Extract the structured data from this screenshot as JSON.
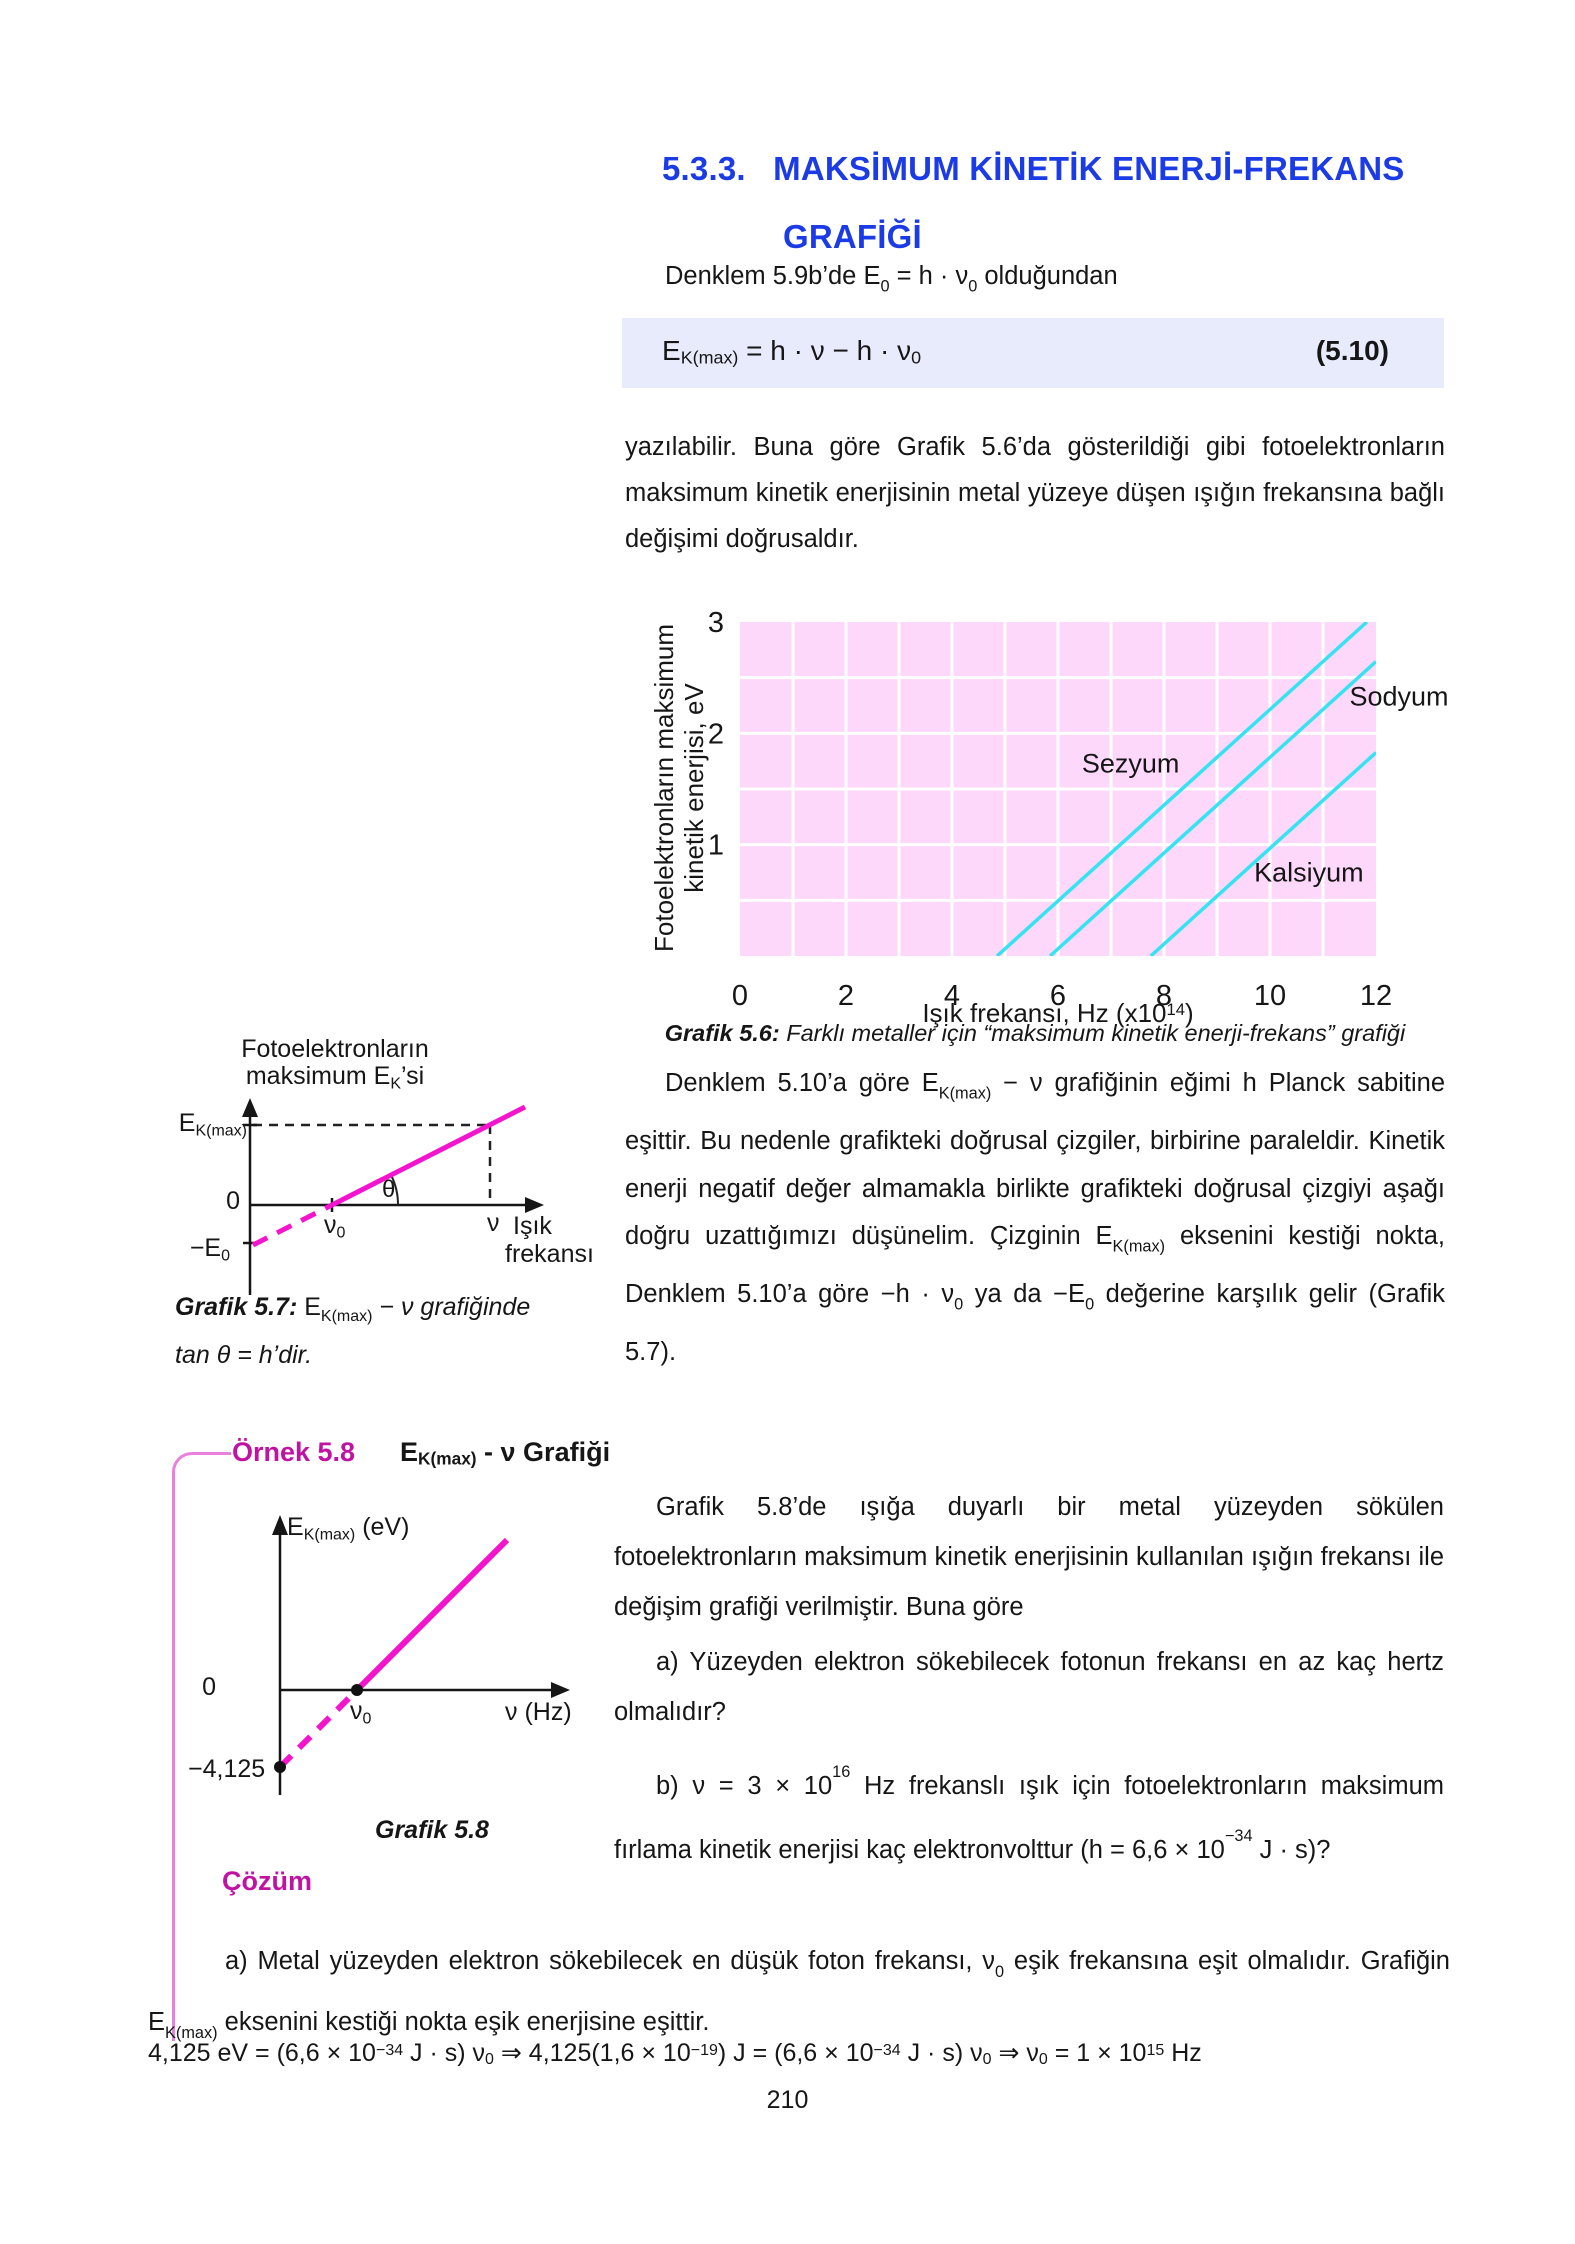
{
  "page": {
    "number": "210"
  },
  "heading": {
    "number": "5.3.3.",
    "line1": "MAKSİMUM KİNETİK ENERJİ-FREKANS",
    "line2": "GRAFİĞİ"
  },
  "intro": {
    "segments": [
      {
        "t": "Denklem 5.9b’de E"
      },
      {
        "t": "0",
        "c": "sb"
      },
      {
        "t": " = h · ν"
      },
      {
        "t": "0",
        "c": "sb"
      },
      {
        "t": " olduğundan"
      }
    ]
  },
  "equation": {
    "segments": [
      {
        "t": "E"
      },
      {
        "t": "K(max)",
        "c": "sb"
      },
      {
        "t": " = h · ν − h · ν"
      },
      {
        "t": "0",
        "c": "sb"
      }
    ],
    "tag": "(5.10)"
  },
  "para1": {
    "text": "yazılabilir. Buna göre Grafik 5.6’da gösterildiği gibi fotoelektronların maksimum kinetik enerjisinin metal yüzeye düşen ışığın frekansına bağlı değişimi doğrusaldır."
  },
  "chart_data": [
    {
      "id": "grafik-5-6",
      "type": "line",
      "title": "Grafik 5.6: Farklı metaller için maksimum kinetik enerji-frekans grafiği",
      "xlabel": "Işık frekansı, Hz (x10^14)",
      "ylabel": "Fotoelektronların maksimum kinetik enerjisi, eV",
      "xlabel_segments": [
        {
          "t": "Işık frekansı, Hz (x10"
        },
        {
          "t": "14",
          "c": "sp"
        },
        {
          "t": ")"
        }
      ],
      "ylabel_lines": [
        "Fotoelektronların maksimum",
        "kinetik enerjisi, eV"
      ],
      "xlim": [
        0,
        12
      ],
      "ylim": [
        0,
        3
      ],
      "x_ticks": [
        0,
        2,
        4,
        6,
        8,
        10,
        12
      ],
      "y_ticks": [
        1,
        2,
        3
      ],
      "grid": {
        "x_step": 1,
        "y_step": 0.5,
        "color": "#ffffff",
        "on": true
      },
      "plot_bg": "#fdd8fa",
      "line_color": "#35e3f2",
      "slope_note": "lines are parallel, slope = h (Planck constant) ≈ 0.43 eV per 10^14 Hz",
      "series": [
        {
          "name": "Sezyum",
          "threshold_x": 4.85,
          "slope": 0.43,
          "label_pos": [
            6.45,
            1.73
          ]
        },
        {
          "name": "Sodyum",
          "threshold_x": 5.85,
          "slope": 0.43,
          "label_pos": [
            11.5,
            2.33
          ]
        },
        {
          "name": "Kalsiyum",
          "threshold_x": 7.75,
          "slope": 0.43,
          "label_pos": [
            9.7,
            0.75
          ]
        }
      ]
    },
    {
      "id": "grafik-5-7",
      "type": "line",
      "title": "Fotoelektronların maksimum EK’si",
      "xlabel": "Işık frekansı",
      "ylabel": "EK(max)",
      "description": "Şematik: doğru ν0 noktasında ekseni keser, eğim açısı θ, tan θ = h, EK(max) ekseni kesim noktası −E0"
    },
    {
      "id": "grafik-5-8",
      "type": "line",
      "xlabel": "ν (Hz)",
      "ylabel": "EK(max) (eV)",
      "x_intercept_label": "ν0",
      "y_intercept": -4.125,
      "caption": "Grafik 5.8"
    }
  ],
  "caption56": {
    "segments": [
      {
        "t": "Grafik 5.6: ",
        "c": "bi"
      },
      {
        "t": "Farklı metaller için “maksimum kinetik enerji-frekans” grafiği",
        "c": "i"
      }
    ]
  },
  "para2": {
    "segments": [
      {
        "t": "Denklem 5.10’a göre E"
      },
      {
        "t": "K(max)",
        "c": "sb"
      },
      {
        "t": " − ν grafiğinin eğimi h Planck sabitine eşittir. Bu nedenle grafikteki doğrusal çizgiler, birbirine paraleldir. Kinetik enerji negatif değer almamakla birlikte grafikteki doğrusal çizgiyi aşağı doğru uzattığımızı düşünelim. Çizginin E"
      },
      {
        "t": "K(max)",
        "c": "sb"
      },
      {
        "t": " eksenini kestiği nokta, Denklem 5.10’a göre −h · ν"
      },
      {
        "t": "0",
        "c": "sb"
      },
      {
        "t": " ya da −E"
      },
      {
        "t": "0",
        "c": "sb"
      },
      {
        "t": " değerine karşılık gelir (Grafik 5.7)."
      }
    ]
  },
  "g57": {
    "title1": "Fotoelektronların",
    "title2_segments": [
      {
        "t": "maksimum E"
      },
      {
        "t": "K",
        "c": "sb"
      },
      {
        "t": "’si"
      }
    ],
    "ylab_segments": [
      {
        "t": "E"
      },
      {
        "t": "K(max)",
        "c": "sb"
      }
    ],
    "zero": "0",
    "neg_segments": [
      {
        "t": "−E"
      },
      {
        "t": "0",
        "c": "sb"
      }
    ],
    "nu0_segments": [
      {
        "t": "ν"
      },
      {
        "t": "0",
        "c": "sb"
      }
    ],
    "nu": "ν",
    "axis1": "Işık",
    "axis2": "frekansı",
    "theta": "θ",
    "cap1_segments": [
      {
        "t": "Grafik 5.7: ",
        "c": "bi"
      },
      {
        "t": "E"
      },
      {
        "t": "K(max)",
        "c": "sb"
      },
      {
        "t": " − ν grafiğinde",
        "c": "i"
      }
    ],
    "cap2_segments": [
      {
        "t": "tan θ = h’dir.",
        "c": "i"
      }
    ]
  },
  "ornek": {
    "label": "Örnek 5.8",
    "title_segments": [
      {
        "t": "E"
      },
      {
        "t": "K(max)",
        "c": "sb"
      },
      {
        "t": " - ν Grafiği"
      }
    ],
    "para": "Grafik 5.8’de ışığa duyarlı bir metal yüzeyden sökülen fotoelektronların maksimum kinetik enerjisinin kullanılan ışığın frekansı ile değişim grafiği verilmiştir. Buna göre",
    "qa": "a) Yüzeyden elektron sökebilecek fotonun frekansı en az kaç hertz olmalıdır?",
    "qb_segments": [
      {
        "t": "b) ν = 3 × 10"
      },
      {
        "t": "16",
        "c": "sp"
      },
      {
        "t": " Hz frekanslı ışık için fotoelektronların maksimum fırlama kinetik enerjisi kaç elektronvolttur (h = 6,6 × 10"
      },
      {
        "t": "−34",
        "c": "sp"
      },
      {
        "t": " J · s)?"
      }
    ]
  },
  "g58": {
    "ylab_segments": [
      {
        "t": "E"
      },
      {
        "t": "K(max)",
        "c": "sb"
      },
      {
        "t": " (eV)"
      }
    ],
    "zero": "0",
    "nu0_segments": [
      {
        "t": "ν"
      },
      {
        "t": "0",
        "c": "sb"
      }
    ],
    "nuhz": "ν (Hz)",
    "yneg": "−4,125",
    "caption": "Grafik 5.8"
  },
  "cozum": {
    "label": "Çözüm",
    "sola_segments": [
      {
        "t": "a) Metal yüzeyden elektron sökebilecek en düşük foton frekansı, ν"
      },
      {
        "t": "0",
        "c": "sb"
      },
      {
        "t": " eşik frekansına eşit olmalıdır. Grafiğin E"
      },
      {
        "t": "K(max)",
        "c": "sb"
      },
      {
        "t": " eksenini kestiği nokta eşik enerjisine eşittir."
      }
    ],
    "eq_segments": [
      {
        "t": "4,125 eV = (6,6 × 10"
      },
      {
        "t": "−34",
        "c": "sp"
      },
      {
        "t": " J · s) ν"
      },
      {
        "t": "0",
        "c": "sb"
      },
      {
        "t": " ⇒ 4,125(1,6 × 10"
      },
      {
        "t": "−19",
        "c": "sp"
      },
      {
        "t": ") J = (6,6 × 10"
      },
      {
        "t": "−34",
        "c": "sp"
      },
      {
        "t": " J · s) ν"
      },
      {
        "t": "0",
        "c": "sb"
      },
      {
        "t": " ⇒ ν"
      },
      {
        "t": "0",
        "c": "sb"
      },
      {
        "t": " = 1 × 10"
      },
      {
        "t": "15",
        "c": "sp"
      },
      {
        "t": " Hz"
      }
    ]
  }
}
